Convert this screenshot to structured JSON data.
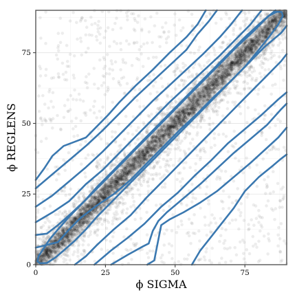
{
  "chart_data": {
    "type": "scatter",
    "xlabel": "ϕ   SIGMA",
    "ylabel": "ϕ   REGLENS",
    "xlim": [
      0,
      90
    ],
    "ylim": [
      0,
      90
    ],
    "x_ticks": [
      0,
      25,
      50,
      75
    ],
    "y_ticks": [
      0,
      25,
      50,
      75
    ],
    "grid": true,
    "points": {
      "description": "dense point cloud concentrated along the diagonal y = x with diffuse background scatter",
      "count": 9000,
      "color": "#000000",
      "opacity": 0.07,
      "main_relation": "y = x",
      "main_spread_sd": 2.2,
      "background_fraction": 0.12
    },
    "density_contours": {
      "color": "#3a78b0",
      "lines": [
        [
          [
            0.6,
            1.2
          ],
          [
            1.5,
            0.5
          ],
          [
            4,
            0.6
          ],
          [
            7,
            2.5
          ],
          [
            10,
            5
          ],
          [
            14,
            8.5
          ],
          [
            18,
            12.5
          ],
          [
            22,
            17
          ],
          [
            27,
            22
          ],
          [
            33,
            28
          ],
          [
            39,
            34
          ],
          [
            45,
            40
          ],
          [
            51,
            46
          ],
          [
            57,
            52
          ],
          [
            63,
            58
          ],
          [
            69,
            64
          ],
          [
            75,
            70
          ],
          [
            80,
            76
          ],
          [
            84,
            81
          ],
          [
            87,
            85
          ],
          [
            88.6,
            88
          ],
          [
            88.2,
            89.4
          ],
          [
            86.5,
            89.5
          ],
          [
            83.5,
            88
          ],
          [
            80,
            85
          ],
          [
            75,
            80.5
          ],
          [
            70,
            75.5
          ],
          [
            64,
            69.5
          ],
          [
            58,
            63.5
          ],
          [
            52,
            57.5
          ],
          [
            46,
            51.5
          ],
          [
            40,
            45.5
          ],
          [
            34,
            39.5
          ],
          [
            28,
            33.5
          ],
          [
            22,
            27.5
          ],
          [
            17,
            22
          ],
          [
            12,
            17
          ],
          [
            8,
            12.5
          ],
          [
            5,
            9
          ],
          [
            3,
            6
          ],
          [
            1,
            3
          ],
          [
            0.6,
            1.2
          ]
        ],
        [
          [
            0,
            6
          ],
          [
            4,
            7
          ],
          [
            8,
            8
          ],
          [
            12,
            12.5
          ],
          [
            16,
            16.5
          ],
          [
            22,
            21
          ],
          [
            28,
            25
          ],
          [
            34,
            30
          ],
          [
            40,
            36
          ],
          [
            46,
            42
          ],
          [
            52,
            48
          ],
          [
            58,
            53.5
          ],
          [
            64,
            59.5
          ],
          [
            70,
            65
          ],
          [
            76,
            71
          ],
          [
            82,
            77
          ],
          [
            88,
            82
          ],
          [
            90,
            84.5
          ]
        ],
        [
          [
            0,
            10.5
          ],
          [
            4,
            11
          ],
          [
            8,
            14
          ],
          [
            12,
            17.5
          ],
          [
            18,
            23
          ],
          [
            24,
            29
          ],
          [
            30,
            35
          ],
          [
            36,
            41
          ],
          [
            42,
            47
          ],
          [
            48,
            53
          ],
          [
            54,
            59
          ],
          [
            60,
            65
          ],
          [
            66,
            71
          ],
          [
            72,
            77
          ],
          [
            78,
            82.5
          ],
          [
            83,
            87.5
          ],
          [
            86,
            90
          ]
        ],
        [
          [
            14,
            0
          ],
          [
            18,
            3
          ],
          [
            22,
            7
          ],
          [
            28,
            12.5
          ],
          [
            34,
            17.5
          ],
          [
            40,
            24
          ],
          [
            46,
            30
          ],
          [
            52,
            36
          ],
          [
            58,
            42
          ],
          [
            64,
            48
          ],
          [
            70,
            54
          ],
          [
            76,
            60
          ],
          [
            82,
            66
          ],
          [
            88,
            72
          ],
          [
            90,
            74.5
          ]
        ],
        [
          [
            0,
            15
          ],
          [
            6,
            18.5
          ],
          [
            12,
            22.5
          ],
          [
            18,
            28.5
          ],
          [
            24,
            33.5
          ],
          [
            30,
            39.5
          ],
          [
            36,
            45.5
          ],
          [
            42,
            51.5
          ],
          [
            48,
            57.5
          ],
          [
            54,
            63
          ],
          [
            60,
            68.5
          ],
          [
            66,
            74
          ],
          [
            72,
            80
          ],
          [
            77,
            85
          ],
          [
            81,
            90
          ]
        ],
        [
          [
            21,
            0
          ],
          [
            27,
            5
          ],
          [
            33,
            9.5
          ],
          [
            39,
            14.5
          ],
          [
            45,
            20.5
          ],
          [
            51,
            25.5
          ],
          [
            57,
            31.5
          ],
          [
            63,
            37
          ],
          [
            69,
            43
          ],
          [
            75,
            48
          ],
          [
            81,
            53
          ],
          [
            87,
            58.5
          ],
          [
            90,
            61
          ]
        ],
        [
          [
            0,
            20.5
          ],
          [
            6,
            24.5
          ],
          [
            12,
            29.5
          ],
          [
            18,
            34.5
          ],
          [
            24,
            40
          ],
          [
            30,
            46
          ],
          [
            36,
            52
          ],
          [
            42,
            58
          ],
          [
            48,
            63.5
          ],
          [
            54,
            69
          ],
          [
            60,
            74.5
          ],
          [
            66,
            80.5
          ],
          [
            70,
            85
          ],
          [
            74,
            90
          ]
        ],
        [
          [
            27,
            0
          ],
          [
            33,
            3.5
          ],
          [
            38.5,
            6.5
          ],
          [
            40.5,
            7.5
          ],
          [
            42,
            12
          ],
          [
            44,
            15.5
          ],
          [
            47,
            18.5
          ],
          [
            53,
            23.5
          ],
          [
            59,
            28.5
          ],
          [
            65,
            34
          ],
          [
            71,
            39.5
          ],
          [
            77,
            44.5
          ],
          [
            83,
            49.5
          ],
          [
            88,
            55
          ],
          [
            90,
            57
          ]
        ],
        [
          [
            0,
            27
          ],
          [
            6,
            32
          ],
          [
            12,
            37
          ],
          [
            18,
            42
          ],
          [
            24,
            47.5
          ],
          [
            30,
            53.5
          ],
          [
            36,
            59.5
          ],
          [
            42,
            65
          ],
          [
            48,
            70.5
          ],
          [
            54,
            76
          ],
          [
            58,
            81.5
          ],
          [
            62,
            86
          ],
          [
            65,
            90
          ]
        ],
        [
          [
            40,
            0
          ],
          [
            42.5,
            1.5
          ],
          [
            45,
            14
          ],
          [
            48,
            16
          ],
          [
            53,
            18.5
          ],
          [
            59,
            22
          ],
          [
            65,
            26
          ],
          [
            71,
            31
          ],
          [
            77,
            36
          ],
          [
            82,
            40.5
          ],
          [
            87,
            45
          ],
          [
            90,
            48.5
          ]
        ],
        [
          [
            0,
            30
          ],
          [
            3,
            34
          ],
          [
            6,
            38.5
          ],
          [
            10,
            42
          ],
          [
            14,
            43.5
          ],
          [
            18,
            45
          ],
          [
            22,
            49
          ],
          [
            26,
            53
          ],
          [
            30,
            57.5
          ],
          [
            36,
            63.5
          ],
          [
            42,
            69
          ],
          [
            48,
            75
          ],
          [
            54,
            80.5
          ],
          [
            58,
            85
          ],
          [
            61,
            90
          ]
        ],
        [
          [
            56,
            0
          ],
          [
            59,
            5
          ],
          [
            63,
            10
          ],
          [
            67,
            15
          ],
          [
            71,
            20
          ],
          [
            75,
            26
          ],
          [
            80,
            31
          ],
          [
            85,
            35
          ],
          [
            88,
            37.5
          ],
          [
            90,
            39
          ]
        ]
      ]
    }
  }
}
